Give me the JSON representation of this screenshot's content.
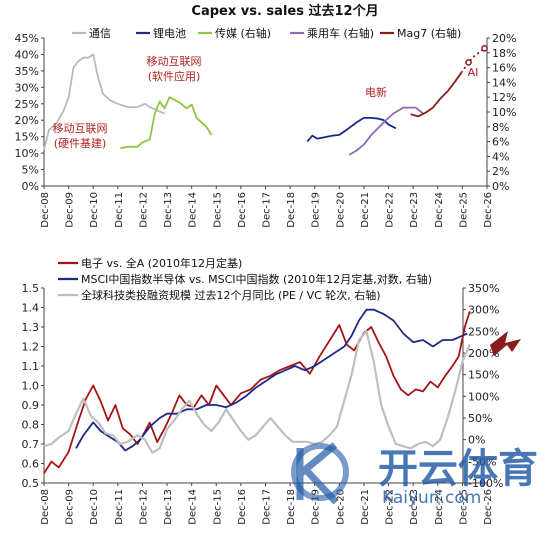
{
  "chart_data": [
    {
      "type": "line",
      "title": "Capex vs. sales 过去12个月",
      "left_axis": {
        "ylim": [
          0,
          45
        ],
        "ticks": [
          0,
          5,
          10,
          15,
          20,
          25,
          30,
          35,
          40,
          45
        ],
        "format": "percent"
      },
      "right_axis": {
        "ylim": [
          0,
          20
        ],
        "ticks": [
          0,
          2,
          4,
          6,
          8,
          10,
          12,
          14,
          16,
          18,
          20
        ],
        "format": "percent"
      },
      "x_axis": {
        "range": [
          2008,
          2026
        ],
        "tick_labels": [
          "Dec-08",
          "Dec-09",
          "Dec-10",
          "Dec-11",
          "Dec-12",
          "Dec-13",
          "Dec-14",
          "Dec-15",
          "Dec-16",
          "Dec-17",
          "Dec-18",
          "Dec-19",
          "Dec-20",
          "Dec-21",
          "Dec-22",
          "Dec-23",
          "Dec-24",
          "Dec-25",
          "Dec-26"
        ]
      },
      "grid": false,
      "legend_position": "top",
      "series": [
        {
          "name": "通信",
          "axis": "left",
          "color": "#b9b9b9",
          "points": [
            [
              2008.0,
              11
            ],
            [
              2008.2,
              17
            ],
            [
              2008.5,
              19
            ],
            [
              2008.8,
              23
            ],
            [
              2009.0,
              27
            ],
            [
              2009.2,
              36
            ],
            [
              2009.4,
              38
            ],
            [
              2009.6,
              39
            ],
            [
              2009.8,
              39
            ],
            [
              2010.0,
              40
            ],
            [
              2010.2,
              33
            ],
            [
              2010.4,
              28
            ],
            [
              2010.7,
              26
            ],
            [
              2011.0,
              25
            ],
            [
              2011.4,
              24
            ],
            [
              2011.8,
              24
            ],
            [
              2012.1,
              25
            ],
            [
              2012.3,
              24
            ],
            [
              2012.6,
              23
            ],
            [
              2012.9,
              22
            ]
          ]
        },
        {
          "name": "锂电池",
          "axis": "right",
          "color": "#1c2a8a",
          "points": [
            [
              2018.7,
              6.0
            ],
            [
              2018.9,
              6.8
            ],
            [
              2019.1,
              6.4
            ],
            [
              2019.4,
              6.6
            ],
            [
              2019.7,
              6.8
            ],
            [
              2020.0,
              6.9
            ],
            [
              2020.3,
              7.6
            ],
            [
              2020.7,
              8.6
            ],
            [
              2021.0,
              9.2
            ],
            [
              2021.3,
              9.2
            ],
            [
              2021.6,
              9.1
            ],
            [
              2021.8,
              8.9
            ],
            [
              2022.0,
              8.3
            ],
            [
              2022.3,
              7.8
            ]
          ]
        },
        {
          "name": "传媒 (右轴)",
          "axis": "right",
          "color": "#8dc63f",
          "points": [
            [
              2011.1,
              5.1
            ],
            [
              2011.4,
              5.3
            ],
            [
              2011.8,
              5.3
            ],
            [
              2012.0,
              5.9
            ],
            [
              2012.3,
              6.3
            ],
            [
              2012.5,
              9.8
            ],
            [
              2012.7,
              11.4
            ],
            [
              2012.9,
              10.5
            ],
            [
              2013.1,
              12.0
            ],
            [
              2013.5,
              11.3
            ],
            [
              2013.8,
              10.5
            ],
            [
              2014.0,
              11.0
            ],
            [
              2014.2,
              9.2
            ],
            [
              2014.4,
              8.6
            ],
            [
              2014.6,
              8.0
            ],
            [
              2014.8,
              6.9
            ]
          ]
        },
        {
          "name": "乘用车 (右轴)",
          "axis": "right",
          "color": "#8f6bb3",
          "points": [
            [
              2020.4,
              4.2
            ],
            [
              2020.7,
              4.8
            ],
            [
              2021.0,
              5.6
            ],
            [
              2021.3,
              6.9
            ],
            [
              2021.6,
              7.9
            ],
            [
              2021.9,
              8.9
            ],
            [
              2022.2,
              9.8
            ],
            [
              2022.6,
              10.6
            ],
            [
              2022.9,
              10.6
            ],
            [
              2023.1,
              10.6
            ],
            [
              2023.4,
              9.8
            ]
          ]
        },
        {
          "name": "Mag7 (右轴)",
          "axis": "right",
          "color": "#8b1a1a",
          "points": [
            [
              2022.9,
              9.7
            ],
            [
              2023.2,
              9.4
            ],
            [
              2023.5,
              9.9
            ],
            [
              2023.8,
              10.6
            ],
            [
              2024.1,
              11.8
            ],
            [
              2024.4,
              12.8
            ],
            [
              2024.7,
              14.1
            ],
            [
              2024.95,
              15.3
            ]
          ],
          "forecast": [
            [
              2024.95,
              15.3
            ],
            [
              2025.25,
              16.7
            ],
            [
              2025.5,
              17.6
            ],
            [
              2025.9,
              18.6
            ]
          ]
        }
      ],
      "annotations": [
        "移动互联网",
        "(软件应用)",
        "移动互联网",
        "(硬件基建)",
        "电新",
        "AI"
      ]
    },
    {
      "type": "line",
      "left_axis": {
        "ylim": [
          0.5,
          1.5
        ],
        "ticks": [
          0.5,
          0.6,
          0.7,
          0.8,
          0.9,
          1.0,
          1.1,
          1.2,
          1.3,
          1.4,
          1.5
        ]
      },
      "right_axis": {
        "ylim": [
          -100,
          350
        ],
        "ticks": [
          -100,
          -50,
          0,
          50,
          100,
          150,
          200,
          250,
          300,
          350
        ],
        "format": "percent"
      },
      "x_axis": {
        "range": [
          2008,
          2026
        ],
        "tick_labels": [
          "Dec-08",
          "Dec-09",
          "Dec-10",
          "Dec-11",
          "Dec-12",
          "Dec-13",
          "Dec-14",
          "Dec-15",
          "Dec-16",
          "Dec-17",
          "Dec-18",
          "Dec-19",
          "Dec-20",
          "Dec-21",
          "Dec-22",
          "Dec-23",
          "Dec-24",
          "Dec-25",
          "Dec-26"
        ]
      },
      "grid": false,
      "legend_position": "top",
      "series": [
        {
          "name": "电子 vs. 全A (2010年12月定基)",
          "axis": "left",
          "color": "#a31515",
          "points": [
            [
              2008.0,
              0.55
            ],
            [
              2008.3,
              0.61
            ],
            [
              2008.6,
              0.58
            ],
            [
              2009.0,
              0.66
            ],
            [
              2009.4,
              0.82
            ],
            [
              2009.7,
              0.93
            ],
            [
              2010.0,
              1.0
            ],
            [
              2010.3,
              0.92
            ],
            [
              2010.6,
              0.82
            ],
            [
              2010.9,
              0.9
            ],
            [
              2011.2,
              0.78
            ],
            [
              2011.5,
              0.75
            ],
            [
              2011.8,
              0.7
            ],
            [
              2012.0,
              0.74
            ],
            [
              2012.3,
              0.81
            ],
            [
              2012.6,
              0.71
            ],
            [
              2012.9,
              0.78
            ],
            [
              2013.2,
              0.86
            ],
            [
              2013.5,
              0.95
            ],
            [
              2013.8,
              0.9
            ],
            [
              2014.1,
              0.89
            ],
            [
              2014.4,
              0.95
            ],
            [
              2014.7,
              0.9
            ],
            [
              2015.0,
              1.0
            ],
            [
              2015.3,
              0.95
            ],
            [
              2015.6,
              0.9
            ],
            [
              2016.0,
              0.96
            ],
            [
              2016.4,
              0.98
            ],
            [
              2016.8,
              1.03
            ],
            [
              2017.2,
              1.05
            ],
            [
              2017.6,
              1.08
            ],
            [
              2018.0,
              1.1
            ],
            [
              2018.4,
              1.12
            ],
            [
              2018.8,
              1.06
            ],
            [
              2019.2,
              1.15
            ],
            [
              2019.6,
              1.23
            ],
            [
              2020.0,
              1.31
            ],
            [
              2020.3,
              1.21
            ],
            [
              2020.6,
              1.18
            ],
            [
              2021.0,
              1.27
            ],
            [
              2021.3,
              1.3
            ],
            [
              2021.6,
              1.22
            ],
            [
              2021.9,
              1.15
            ],
            [
              2022.2,
              1.05
            ],
            [
              2022.5,
              0.98
            ],
            [
              2022.8,
              0.95
            ],
            [
              2023.1,
              0.98
            ],
            [
              2023.4,
              0.97
            ],
            [
              2023.7,
              1.02
            ],
            [
              2024.0,
              0.99
            ],
            [
              2024.3,
              1.05
            ],
            [
              2024.6,
              1.1
            ],
            [
              2024.85,
              1.15
            ],
            [
              2025.1,
              1.3
            ],
            [
              2025.3,
              1.38
            ]
          ]
        },
        {
          "name": "MSCI中国指数半导体 vs. MSCI中国指数 (2010年12月定基,对数, 右轴)",
          "axis": "right",
          "color": "#1c2a8a",
          "points": [
            [
              2009.3,
              -20
            ],
            [
              2009.6,
              10
            ],
            [
              2010.0,
              40
            ],
            [
              2010.3,
              20
            ],
            [
              2010.7,
              5
            ],
            [
              2011.0,
              -5
            ],
            [
              2011.3,
              -25
            ],
            [
              2011.6,
              -15
            ],
            [
              2011.9,
              0
            ],
            [
              2012.3,
              30
            ],
            [
              2012.7,
              50
            ],
            [
              2013.0,
              60
            ],
            [
              2013.4,
              60
            ],
            [
              2013.8,
              70
            ],
            [
              2014.2,
              70
            ],
            [
              2014.6,
              80
            ],
            [
              2015.0,
              80
            ],
            [
              2015.4,
              75
            ],
            [
              2015.8,
              85
            ],
            [
              2016.2,
              100
            ],
            [
              2016.6,
              120
            ],
            [
              2017.0,
              135
            ],
            [
              2017.4,
              150
            ],
            [
              2017.8,
              160
            ],
            [
              2018.2,
              170
            ],
            [
              2018.6,
              160
            ],
            [
              2019.0,
              170
            ],
            [
              2019.4,
              185
            ],
            [
              2019.8,
              200
            ],
            [
              2020.2,
              215
            ],
            [
              2020.5,
              240
            ],
            [
              2020.8,
              275
            ],
            [
              2021.1,
              300
            ],
            [
              2021.4,
              300
            ],
            [
              2021.8,
              290
            ],
            [
              2022.2,
              275
            ],
            [
              2022.6,
              245
            ],
            [
              2023.0,
              225
            ],
            [
              2023.4,
              230
            ],
            [
              2023.8,
              215
            ],
            [
              2024.2,
              230
            ],
            [
              2024.6,
              230
            ],
            [
              2025.0,
              240
            ],
            [
              2025.2,
              245
            ]
          ]
        },
        {
          "name": "全球科技类投融资规模 过去12个月同比 (PE / VC 轮次, 右轴)",
          "axis": "right",
          "color": "#bfbfbf",
          "points": [
            [
              2008.0,
              -15
            ],
            [
              2008.3,
              -10
            ],
            [
              2008.6,
              5
            ],
            [
              2009.0,
              20
            ],
            [
              2009.3,
              60
            ],
            [
              2009.6,
              95
            ],
            [
              2009.9,
              55
            ],
            [
              2010.2,
              40
            ],
            [
              2010.5,
              15
            ],
            [
              2010.8,
              10
            ],
            [
              2011.1,
              -10
            ],
            [
              2011.4,
              -5
            ],
            [
              2011.8,
              10
            ],
            [
              2012.1,
              0
            ],
            [
              2012.4,
              -30
            ],
            [
              2012.7,
              -20
            ],
            [
              2013.0,
              25
            ],
            [
              2013.3,
              45
            ],
            [
              2013.6,
              70
            ],
            [
              2013.9,
              90
            ],
            [
              2014.2,
              60
            ],
            [
              2014.5,
              35
            ],
            [
              2014.8,
              20
            ],
            [
              2015.1,
              40
            ],
            [
              2015.4,
              70
            ],
            [
              2015.7,
              45
            ],
            [
              2016.0,
              20
            ],
            [
              2016.3,
              0
            ],
            [
              2016.6,
              10
            ],
            [
              2016.9,
              30
            ],
            [
              2017.2,
              50
            ],
            [
              2017.5,
              30
            ],
            [
              2017.8,
              10
            ],
            [
              2018.1,
              -5
            ],
            [
              2018.4,
              -5
            ],
            [
              2018.7,
              -5
            ],
            [
              2019.0,
              -10
            ],
            [
              2019.3,
              -5
            ],
            [
              2019.6,
              10
            ],
            [
              2019.9,
              30
            ],
            [
              2020.2,
              90
            ],
            [
              2020.5,
              150
            ],
            [
              2020.8,
              230
            ],
            [
              2021.1,
              250
            ],
            [
              2021.4,
              180
            ],
            [
              2021.7,
              80
            ],
            [
              2022.0,
              30
            ],
            [
              2022.3,
              -10
            ],
            [
              2022.6,
              -15
            ],
            [
              2022.9,
              -20
            ],
            [
              2023.2,
              -10
            ],
            [
              2023.5,
              -5
            ],
            [
              2023.8,
              -15
            ],
            [
              2024.1,
              0
            ],
            [
              2024.4,
              50
            ],
            [
              2024.7,
              110
            ],
            [
              2025.0,
              180
            ],
            [
              2025.3,
              220
            ]
          ]
        }
      ]
    }
  ],
  "watermark": {
    "text": "开云体育",
    "subtext": "Kaiyun.com"
  }
}
